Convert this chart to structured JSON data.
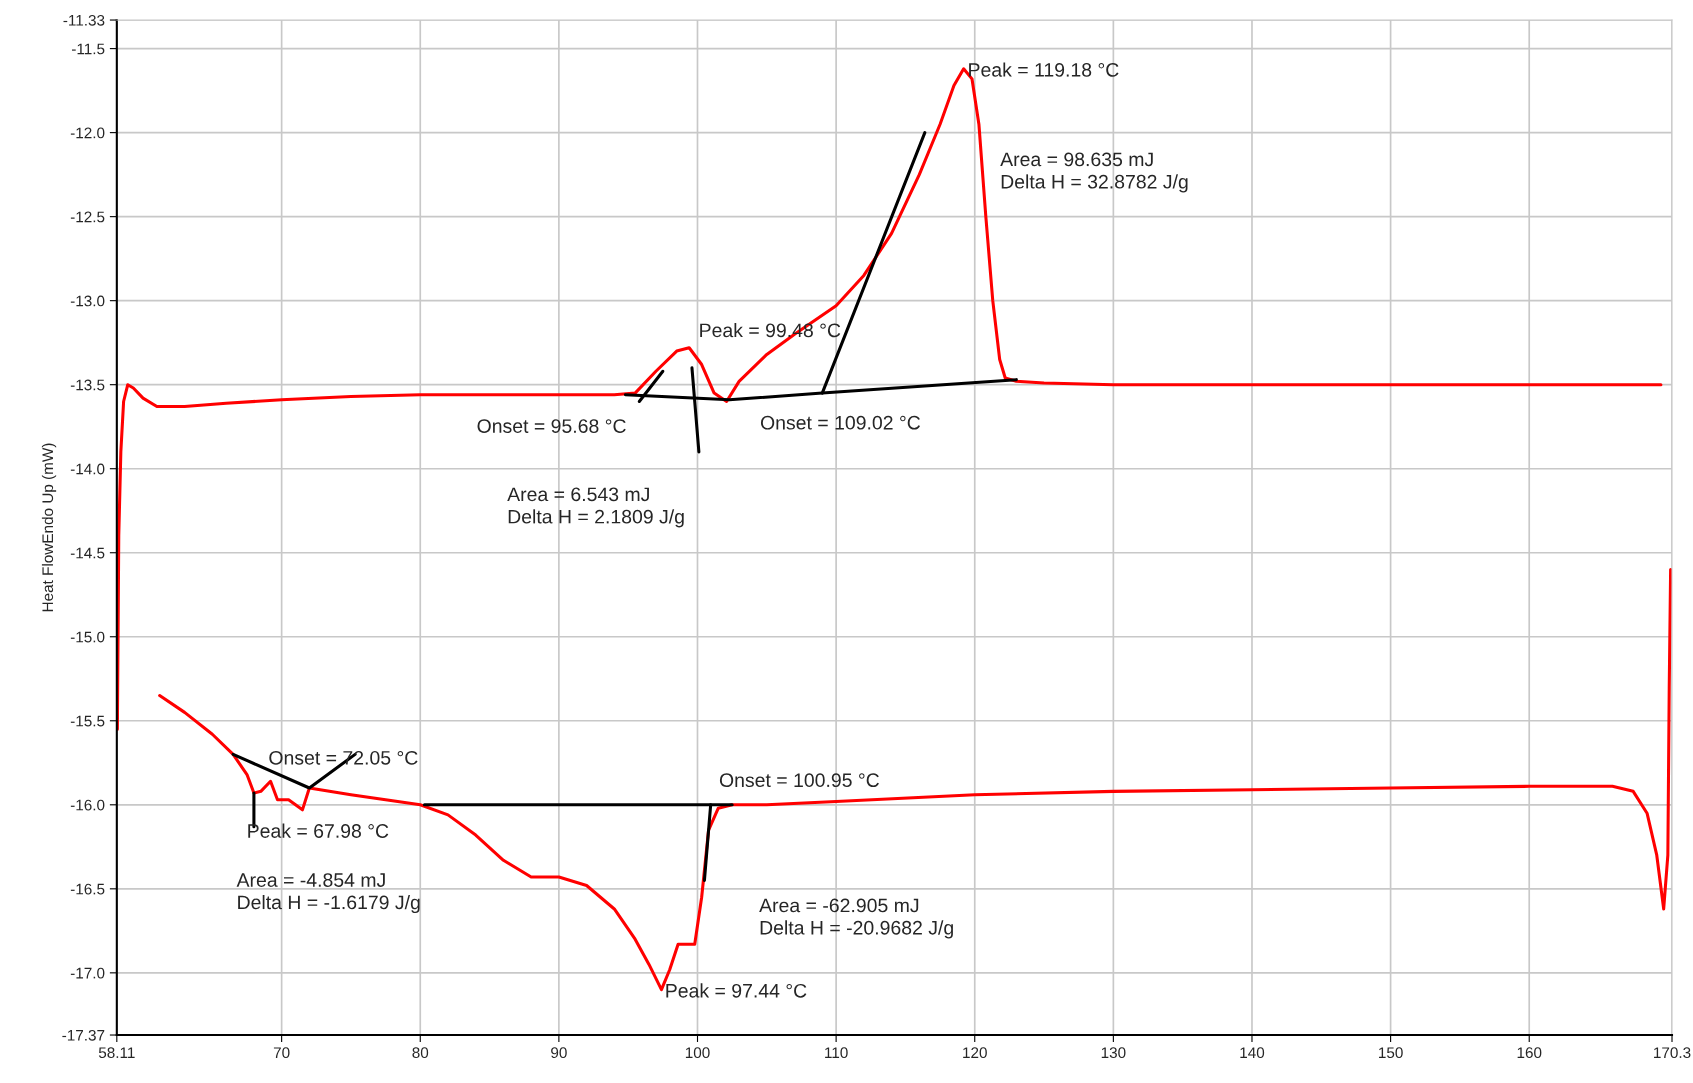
{
  "chart_data": {
    "type": "line",
    "ylabel": "Heat FlowEndo Up (mW)",
    "xlim": [
      58.11,
      170.3
    ],
    "xticks": [
      58.11,
      70,
      80,
      90,
      100,
      110,
      120,
      130,
      140,
      150,
      160,
      170.3
    ],
    "ylim": [
      -17.37,
      -11.33
    ],
    "yticks": [
      -17.37,
      {
        "value": -17,
        "label": "-17.0"
      },
      -16.5,
      {
        "value": -16,
        "label": "-16.0"
      },
      -15.5,
      {
        "value": -15,
        "label": "-15.0"
      },
      -14.5,
      {
        "value": -14,
        "label": "-14.0"
      },
      -13.5,
      {
        "value": -13,
        "label": "-13.0"
      },
      -12.5,
      {
        "value": -12,
        "label": "-12.0"
      },
      -11.5,
      -11.33
    ],
    "grid": true,
    "series": [
      {
        "color": "#ff0000",
        "x": [
          58.15,
          58.25,
          58.4,
          58.6,
          58.9,
          59.3,
          60.0,
          61.0,
          63.0,
          66.0,
          70.0,
          75.0,
          80.0,
          85.0,
          90.0,
          94.0,
          95.5,
          97.0,
          98.5,
          99.4,
          100.3,
          101.2,
          102.1,
          103.0,
          105.0,
          107.0,
          110.0,
          112.0,
          114.0,
          116.0,
          117.5,
          118.5,
          119.2,
          119.8,
          120.3,
          120.8,
          121.3,
          121.8,
          122.2,
          123.0,
          125.0,
          130.0,
          140.0,
          150.0,
          160.0,
          169.5
        ],
        "values": [
          -15.55,
          -14.4,
          -13.9,
          -13.6,
          -13.5,
          -13.52,
          -13.58,
          -13.63,
          -13.63,
          -13.61,
          -13.59,
          -13.57,
          -13.56,
          -13.56,
          -13.56,
          -13.56,
          -13.55,
          -13.42,
          -13.3,
          -13.28,
          -13.38,
          -13.55,
          -13.6,
          -13.48,
          -13.32,
          -13.2,
          -13.03,
          -12.85,
          -12.6,
          -12.25,
          -11.95,
          -11.72,
          -11.62,
          -11.68,
          -11.95,
          -12.5,
          -13.0,
          -13.35,
          -13.46,
          -13.48,
          -13.49,
          -13.5,
          -13.5,
          -13.5,
          -13.5,
          -13.5
        ]
      },
      {
        "color": "#ff0000",
        "x": [
          61.2,
          63.0,
          65.0,
          66.5,
          67.5,
          68.0,
          68.5,
          69.2,
          69.7,
          70.5,
          71.5,
          72.0,
          75.0,
          80.0,
          82.0,
          84.0,
          86.0,
          88.0,
          90.0,
          92.0,
          94.0,
          95.5,
          96.5,
          97.4,
          98.0,
          98.6,
          99.8,
          100.3,
          100.8,
          101.5,
          102.5,
          105.0,
          110.0,
          120.0,
          130.0,
          140.0,
          150.0,
          160.0,
          166.0,
          167.5,
          168.5,
          169.2,
          169.7,
          170.0,
          170.1,
          170.2
        ],
        "values": [
          -15.35,
          -15.45,
          -15.58,
          -15.7,
          -15.82,
          -15.93,
          -15.92,
          -15.86,
          -15.97,
          -15.97,
          -16.03,
          -15.9,
          -15.94,
          -16.0,
          -16.06,
          -16.18,
          -16.33,
          -16.43,
          -16.43,
          -16.48,
          -16.62,
          -16.8,
          -16.95,
          -17.1,
          -16.98,
          -16.83,
          -16.83,
          -16.55,
          -16.15,
          -16.02,
          -16.0,
          -16.0,
          -15.98,
          -15.94,
          -15.92,
          -15.91,
          -15.9,
          -15.89,
          -15.89,
          -15.92,
          -16.05,
          -16.3,
          -16.62,
          -16.3,
          -15.3,
          -14.6
        ]
      },
      {
        "color": "#000000",
        "x": [
          94.8,
          102.3,
          109.0,
          123.0
        ],
        "values": [
          -13.56,
          -13.59,
          -13.55,
          -13.47
        ]
      },
      {
        "color": "#000000",
        "x": [
          95.8,
          97.5
        ],
        "values": [
          -13.6,
          -13.42
        ]
      },
      {
        "color": "#000000",
        "x": [
          99.6,
          100.1
        ],
        "values": [
          -13.4,
          -13.9
        ]
      },
      {
        "color": "#000000",
        "x": [
          109.0,
          116.4
        ],
        "values": [
          -13.55,
          -12.0
        ]
      },
      {
        "color": "#000000",
        "x": [
          66.5,
          72.0,
          75.3
        ],
        "values": [
          -15.7,
          -15.9,
          -15.7
        ]
      },
      {
        "color": "#000000",
        "x": [
          68.0,
          68.0
        ],
        "values": [
          -15.93,
          -16.13
        ]
      },
      {
        "color": "#000000",
        "x": [
          80.3,
          102.5
        ],
        "values": [
          -16.0,
          -16.0
        ]
      },
      {
        "color": "#000000",
        "x": [
          100.95,
          100.5
        ],
        "values": [
          -16.0,
          -16.45
        ]
      }
    ],
    "annotations": [
      {
        "text": "Peak = 99.48 °C",
        "x": 99.48,
        "y": -13.29
      },
      {
        "text": "Onset = 95.68 °C",
        "x": 95.68,
        "y": -13.57
      },
      {
        "text": "Onset = 109.02 °C",
        "x": 109.02,
        "y": -13.55
      },
      {
        "text": "Peak = 119.18 °C",
        "x": 119.18,
        "y": -11.62
      },
      {
        "text": "Onset = 72.05 °C",
        "x": 72.05,
        "y": -15.9
      },
      {
        "text": "Peak = 67.98 °C",
        "x": 67.98,
        "y": -15.93
      },
      {
        "text": "Onset = 100.95 °C",
        "x": 100.95,
        "y": -16.0
      },
      {
        "text": "Peak = 97.44 °C",
        "x": 97.44,
        "y": -17.1
      },
      "Area = 6.543 mJ\nDelta H = 2.1809 J/g",
      "Area = 98.635 mJ\nDelta H = 32.8782 J/g",
      "Area = -4.854 mJ\nDelta H = -1.6179 J/g",
      "Area = -62.905 mJ\nDelta H = -20.9682 J/g"
    ]
  }
}
